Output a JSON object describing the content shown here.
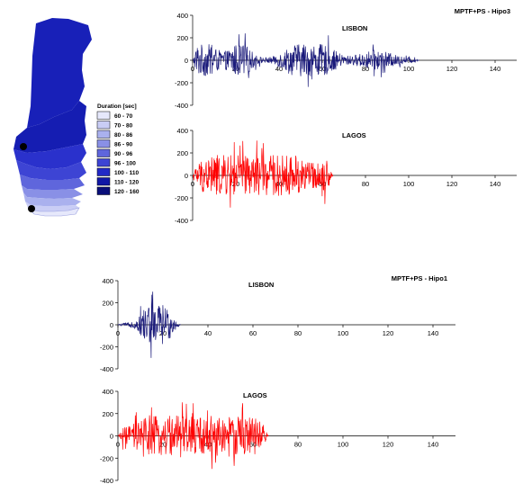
{
  "map": {
    "legend_title": "Duration [sec]",
    "legend": [
      {
        "label": "60 - 70",
        "color": "#e6e8fb"
      },
      {
        "label": "70 - 80",
        "color": "#c9cdf5"
      },
      {
        "label": "80 - 86",
        "color": "#aab1ee"
      },
      {
        "label": "86 - 90",
        "color": "#8990e6"
      },
      {
        "label": "90 - 96",
        "color": "#5f66dc"
      },
      {
        "label": "96 - 100",
        "color": "#3d44d4"
      },
      {
        "label": "100 - 110",
        "color": "#2229c6"
      },
      {
        "label": "110 - 120",
        "color": "#1118a6"
      },
      {
        "label": "120 - 160",
        "color": "#0a0f7a"
      }
    ],
    "colors": {
      "north": "#1820b8",
      "center": "#141cb0",
      "south_dark": "#2a31cc",
      "coast": "#eceefb",
      "marker": "#000000"
    }
  },
  "chart_data": [
    {
      "type": "line",
      "panel_title": "MPTF+PS - Hipo3",
      "station": "LISBON",
      "color": "#1a1a7a",
      "xlim": [
        0,
        150
      ],
      "ylim": [
        -400,
        400
      ],
      "xticks": [
        0,
        20,
        40,
        60,
        80,
        100,
        120,
        140
      ],
      "yticks": [
        400,
        200,
        0,
        -200,
        -400
      ],
      "signal": {
        "start": 0,
        "end": 105,
        "peak": 260,
        "bursts": [
          [
            5,
            8,
            1.0
          ],
          [
            22,
            6,
            1.0
          ],
          [
            48,
            8,
            0.85
          ],
          [
            60,
            8,
            0.8
          ],
          [
            85,
            10,
            0.5
          ]
        ],
        "floor": 0.12
      }
    },
    {
      "type": "line",
      "panel_title": "",
      "station": "LAGOS",
      "color": "#ff0000",
      "xlim": [
        0,
        150
      ],
      "ylim": [
        -400,
        400
      ],
      "xticks": [
        0,
        20,
        40,
        60,
        80,
        100,
        120,
        140
      ],
      "yticks": [
        400,
        200,
        0,
        -200,
        -400
      ],
      "signal": {
        "start": 0,
        "end": 65,
        "peak": 330,
        "bursts": [
          [
            12,
            10,
            1.0
          ],
          [
            30,
            14,
            0.85
          ],
          [
            48,
            10,
            0.55
          ],
          [
            62,
            4,
            0.45
          ]
        ],
        "floor": 0.25
      }
    },
    {
      "type": "line",
      "panel_title": "MPTF+PS - Hipo1",
      "station": "LISBON",
      "color": "#1a1a7a",
      "xlim": [
        0,
        150
      ],
      "ylim": [
        -400,
        400
      ],
      "xticks": [
        0,
        20,
        40,
        60,
        80,
        100,
        120,
        140
      ],
      "yticks": [
        400,
        200,
        0,
        -200,
        -400
      ],
      "signal": {
        "start": 0,
        "end": 28,
        "peak": 360,
        "bursts": [
          [
            15,
            5,
            1.0
          ],
          [
            20,
            6,
            0.6
          ]
        ],
        "floor": 0.08
      }
    },
    {
      "type": "line",
      "panel_title": "",
      "station": "LAGOS",
      "color": "#ff0000",
      "xlim": [
        0,
        150
      ],
      "ylim": [
        -400,
        400
      ],
      "xticks": [
        0,
        20,
        40,
        60,
        80,
        100,
        120,
        140
      ],
      "yticks": [
        400,
        200,
        0,
        -200,
        -400
      ],
      "signal": {
        "start": 0,
        "end": 67,
        "peak": 330,
        "bursts": [
          [
            20,
            12,
            1.0
          ],
          [
            42,
            12,
            0.75
          ],
          [
            58,
            10,
            0.6
          ]
        ],
        "floor": 0.3
      }
    }
  ]
}
